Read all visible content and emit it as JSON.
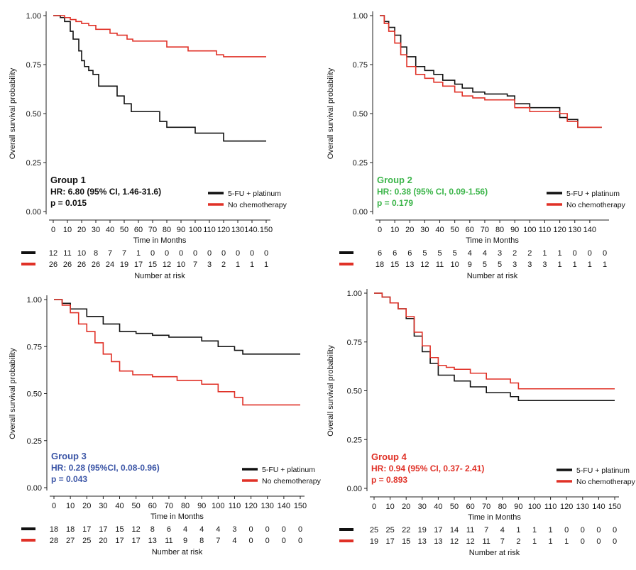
{
  "colors": {
    "treated": "#111111",
    "untreated": "#e03127",
    "group1": "#111111",
    "group2": "#3cb54a",
    "group3": "#3b55a6",
    "group4": "#e03127"
  },
  "chart_data": [
    {
      "type": "line",
      "id": "group1",
      "ylabel": "Overall survival probability",
      "xlabel": "Time in Months",
      "risk_label": "Number at risk",
      "ylim": [
        0,
        1
      ],
      "xlim": [
        0,
        150
      ],
      "yticks": [
        "0.00",
        "0.25",
        "0.50",
        "0.75",
        "1.00"
      ],
      "xtick_values": [
        0,
        10,
        20,
        30,
        40,
        50,
        60,
        70,
        80,
        90,
        100,
        110,
        120,
        130,
        140,
        150
      ],
      "xtick_labels": [
        "0",
        "10",
        "20",
        "30",
        "40",
        "50",
        "60",
        "70",
        "80",
        "90",
        "100",
        "110",
        "120",
        "130",
        "140.",
        "150"
      ],
      "risk_times": [
        0,
        10,
        20,
        30,
        40,
        50,
        60,
        70,
        80,
        90,
        100,
        110,
        120,
        130,
        140,
        150
      ],
      "annotation": {
        "group": "Group 1",
        "hr": "HR: 6.80 (95% CI, 1.46-31.6)",
        "p": "p = 0.015",
        "color_key": "group1"
      },
      "series": [
        {
          "name": "5-FU + platinum",
          "color_key": "treated",
          "x": [
            0,
            5,
            8,
            12,
            14,
            18,
            20,
            22,
            25,
            28,
            32,
            45,
            50,
            55,
            75,
            80,
            100,
            120,
            150
          ],
          "y": [
            1.0,
            0.99,
            0.97,
            0.92,
            0.88,
            0.82,
            0.77,
            0.74,
            0.72,
            0.7,
            0.64,
            0.59,
            0.55,
            0.51,
            0.46,
            0.43,
            0.4,
            0.36,
            0.36
          ],
          "risk": [
            "12",
            "11",
            "10",
            "8",
            "7",
            "7",
            "1",
            "0",
            "0",
            "0",
            "0",
            "0",
            "0",
            "0",
            "0",
            "0"
          ]
        },
        {
          "name": "No chemotherapy",
          "color_key": "untreated",
          "x": [
            0,
            8,
            12,
            16,
            20,
            25,
            30,
            40,
            45,
            52,
            56,
            80,
            95,
            115,
            120,
            150
          ],
          "y": [
            1.0,
            0.99,
            0.98,
            0.97,
            0.96,
            0.95,
            0.93,
            0.91,
            0.9,
            0.88,
            0.87,
            0.84,
            0.82,
            0.8,
            0.79,
            0.79
          ],
          "risk": [
            "26",
            "26",
            "26",
            "26",
            "24",
            "19",
            "17",
            "15",
            "12",
            "10",
            "7",
            "3",
            "2",
            "1",
            "1",
            "1"
          ]
        }
      ]
    },
    {
      "type": "line",
      "id": "group2",
      "ylabel": "Overall survival probability",
      "xlabel": "Time in Months",
      "risk_label": "Number at risk",
      "ylim": [
        0,
        1
      ],
      "xlim": [
        0,
        150
      ],
      "yticks": [
        "0.00",
        "0.25",
        "0.50",
        "0.75",
        "1.00"
      ],
      "xtick_values": [
        0,
        10,
        20,
        30,
        40,
        50,
        60,
        70,
        80,
        90,
        100,
        110,
        120,
        130,
        140
      ],
      "xtick_labels": [
        "0",
        "10",
        "20",
        "30",
        "40",
        "50",
        "60",
        "70",
        "80",
        "90",
        "100",
        "110",
        "120",
        "130",
        "140"
      ],
      "risk_times": [
        0,
        10,
        20,
        30,
        40,
        50,
        60,
        70,
        80,
        90,
        100,
        110,
        120,
        130,
        140,
        150
      ],
      "annotation": {
        "group": "Group 2",
        "hr": "HR: 0.38 (95% CI, 0.09-1.56)",
        "p": "p = 0.179",
        "color_key": "group2"
      },
      "series": [
        {
          "name": "5-FU + platinum",
          "color_key": "treated",
          "x": [
            0,
            3,
            6,
            10,
            14,
            18,
            24,
            30,
            36,
            42,
            50,
            55,
            62,
            70,
            85,
            90,
            100,
            120,
            125,
            132,
            148
          ],
          "y": [
            1.0,
            0.97,
            0.94,
            0.9,
            0.84,
            0.79,
            0.74,
            0.72,
            0.7,
            0.67,
            0.65,
            0.63,
            0.61,
            0.6,
            0.59,
            0.55,
            0.53,
            0.48,
            0.47,
            0.43,
            0.43
          ],
          "risk": [
            "6",
            "6",
            "6",
            "5",
            "5",
            "5",
            "4",
            "4",
            "3",
            "2",
            "2",
            "1",
            "1",
            "0",
            "0",
            "0"
          ]
        },
        {
          "name": "No chemotherapy",
          "color_key": "untreated",
          "x": [
            0,
            3,
            6,
            10,
            14,
            18,
            24,
            30,
            36,
            42,
            50,
            55,
            62,
            70,
            85,
            90,
            100,
            120,
            125,
            132,
            148
          ],
          "y": [
            1.0,
            0.96,
            0.92,
            0.86,
            0.8,
            0.74,
            0.7,
            0.68,
            0.66,
            0.64,
            0.61,
            0.59,
            0.58,
            0.57,
            0.57,
            0.53,
            0.51,
            0.5,
            0.46,
            0.43,
            0.43
          ],
          "risk": [
            "18",
            "15",
            "13",
            "12",
            "11",
            "10",
            "9",
            "5",
            "5",
            "3",
            "3",
            "3",
            "1",
            "1",
            "1",
            "1"
          ]
        }
      ]
    },
    {
      "type": "line",
      "id": "group3",
      "ylabel": "Overall survival probability",
      "xlabel": "Time in Months",
      "risk_label": "Number at risk",
      "ylim": [
        0,
        1
      ],
      "xlim": [
        0,
        150
      ],
      "yticks": [
        "0.00",
        "0.25",
        "0.50",
        "0.75",
        "1.00"
      ],
      "xtick_values": [
        0,
        10,
        20,
        30,
        40,
        50,
        60,
        70,
        80,
        90,
        100,
        110,
        120,
        130,
        140,
        150
      ],
      "xtick_labels": [
        "0",
        "10",
        "20",
        "30",
        "40",
        "50",
        "60",
        "70",
        "80",
        "90",
        "100",
        "110",
        "120",
        "130",
        "140",
        "150"
      ],
      "risk_times": [
        0,
        10,
        20,
        30,
        40,
        50,
        60,
        70,
        80,
        90,
        100,
        110,
        120,
        130,
        140,
        150
      ],
      "annotation": {
        "group": "Group 3",
        "hr": "HR: 0.28 (95%CI, 0.08-0.96)",
        "p": "p = 0.043",
        "color_key": "group3"
      },
      "series": [
        {
          "name": "5-FU + platinum",
          "color_key": "treated",
          "x": [
            0,
            5,
            10,
            20,
            30,
            40,
            50,
            60,
            70,
            90,
            100,
            110,
            115,
            150
          ],
          "y": [
            1.0,
            0.98,
            0.95,
            0.91,
            0.87,
            0.83,
            0.82,
            0.81,
            0.8,
            0.78,
            0.75,
            0.73,
            0.71,
            0.71
          ],
          "risk": [
            "18",
            "18",
            "17",
            "17",
            "15",
            "12",
            "8",
            "6",
            "4",
            "4",
            "4",
            "3",
            "0",
            "0",
            "0",
            "0"
          ]
        },
        {
          "name": "No chemotherapy",
          "color_key": "untreated",
          "x": [
            0,
            5,
            10,
            15,
            20,
            25,
            30,
            35,
            40,
            48,
            60,
            75,
            90,
            100,
            110,
            115,
            150
          ],
          "y": [
            1.0,
            0.97,
            0.93,
            0.87,
            0.83,
            0.77,
            0.71,
            0.67,
            0.62,
            0.6,
            0.59,
            0.57,
            0.55,
            0.51,
            0.48,
            0.44,
            0.44
          ],
          "risk": [
            "28",
            "27",
            "25",
            "20",
            "17",
            "17",
            "13",
            "11",
            "9",
            "8",
            "7",
            "4",
            "0",
            "0",
            "0",
            "0"
          ]
        }
      ]
    },
    {
      "type": "line",
      "id": "group4",
      "ylabel": "Overall survival probability",
      "xlabel": "Time in Months",
      "risk_label": "Number at risk",
      "ylim": [
        0,
        1
      ],
      "xlim": [
        0,
        150
      ],
      "yticks": [
        "0.00",
        "0.25",
        "0.50",
        "0.75",
        "1.00"
      ],
      "xtick_values": [
        0,
        10,
        20,
        30,
        40,
        50,
        60,
        70,
        80,
        90,
        100,
        110,
        120,
        130,
        140,
        150
      ],
      "xtick_labels": [
        "0",
        "10",
        "20",
        "30",
        "40",
        "50",
        "60",
        "70",
        "80",
        "90",
        "100",
        "110",
        "120",
        "130",
        "140",
        "150"
      ],
      "risk_times": [
        0,
        10,
        20,
        30,
        40,
        50,
        60,
        70,
        80,
        90,
        100,
        110,
        120,
        130,
        140,
        150
      ],
      "annotation": {
        "group": "Group 4",
        "hr": "HR: 0.94 (95% CI, 0.37- 2.41)",
        "p": "p = 0.893",
        "color_key": "group4"
      },
      "series": [
        {
          "name": "5-FU + platinum",
          "color_key": "treated",
          "x": [
            0,
            5,
            10,
            15,
            20,
            25,
            30,
            35,
            40,
            50,
            60,
            70,
            85,
            90,
            150
          ],
          "y": [
            1.0,
            0.98,
            0.95,
            0.92,
            0.87,
            0.78,
            0.7,
            0.64,
            0.58,
            0.55,
            0.52,
            0.49,
            0.47,
            0.45,
            0.45
          ],
          "risk": [
            "25",
            "25",
            "22",
            "19",
            "17",
            "14",
            "11",
            "7",
            "4",
            "1",
            "1",
            "1",
            "0",
            "0",
            "0",
            "0"
          ]
        },
        {
          "name": "No chemotherapy",
          "color_key": "untreated",
          "x": [
            0,
            5,
            10,
            15,
            20,
            25,
            30,
            35,
            40,
            45,
            50,
            60,
            70,
            85,
            90,
            150
          ],
          "y": [
            1.0,
            0.98,
            0.95,
            0.92,
            0.88,
            0.8,
            0.73,
            0.67,
            0.63,
            0.62,
            0.61,
            0.59,
            0.56,
            0.54,
            0.51,
            0.51
          ],
          "risk": [
            "19",
            "17",
            "15",
            "13",
            "13",
            "12",
            "12",
            "11",
            "7",
            "2",
            "1",
            "1",
            "1",
            "0",
            "0",
            "0"
          ]
        }
      ]
    }
  ]
}
